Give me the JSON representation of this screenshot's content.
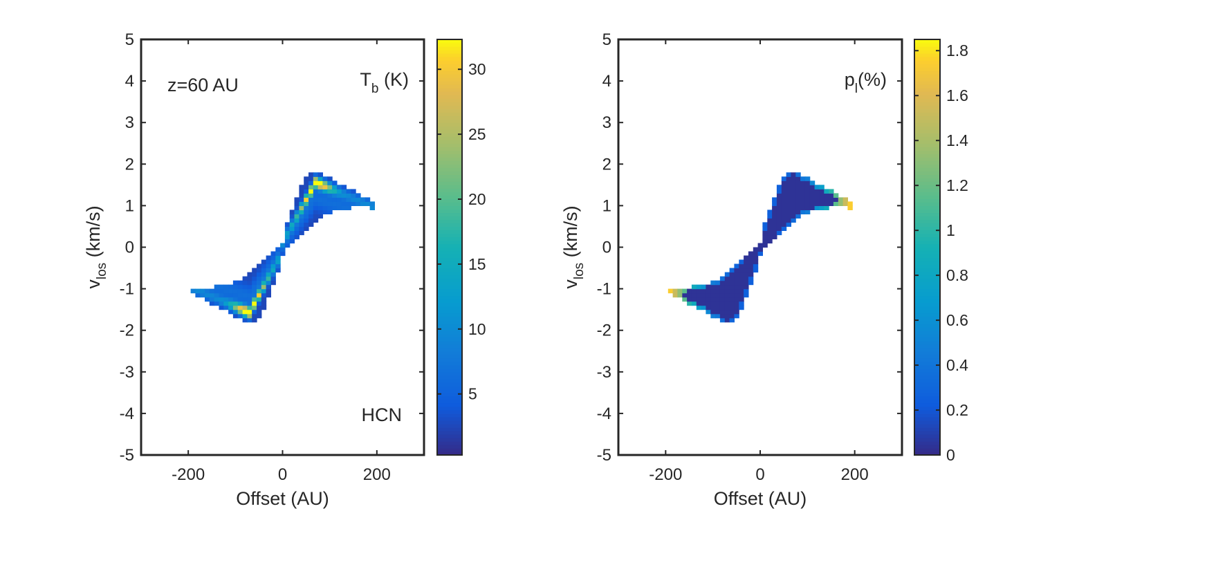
{
  "chart_data": [
    {
      "type": "heatmap",
      "title": "",
      "xlabel": "Offset (AU)",
      "ylabel_main": "v",
      "ylabel_sub": "los",
      "ylabel_unit": " (km/s)",
      "xlim": [
        -300,
        300
      ],
      "ylim": [
        -5,
        5
      ],
      "xticks": [
        -200,
        0,
        200
      ],
      "xtick_labels": [
        "-200",
        "0",
        "200"
      ],
      "yticks": [
        5,
        4,
        3,
        2,
        1,
        0,
        -1,
        -2,
        -3,
        -4,
        -5
      ],
      "ytick_labels": [
        "5",
        "4",
        "3",
        "2",
        "1",
        "0",
        "-1",
        "-2",
        "-3",
        "-4",
        "-5"
      ],
      "annotations": {
        "top_left": "z=60 AU",
        "top_right_main": "T",
        "top_right_sub": "b",
        "top_right_unit": " (K)",
        "bottom_right": "HCN"
      },
      "quantity": "Tb",
      "colorbar": {
        "min": 0.3,
        "max": 32.3,
        "ticks": [
          5,
          10,
          15,
          20,
          25,
          30
        ],
        "tick_labels": [
          "5",
          "10",
          "15",
          "20",
          "25",
          "30"
        ]
      },
      "extent": {
        "offset_range_AU": [
          -190,
          190
        ],
        "velocity_range_kms": [
          -1.85,
          1.85
        ],
        "peak_value": 32,
        "peak_locations": [
          [
            70,
            1.5
          ],
          [
            -70,
            -1.5
          ]
        ]
      }
    },
    {
      "type": "heatmap",
      "title": "",
      "xlabel": "Offset (AU)",
      "ylabel_main": "v",
      "ylabel_sub": "los",
      "ylabel_unit": " (km/s)",
      "xlim": [
        -300,
        300
      ],
      "ylim": [
        -5,
        5
      ],
      "xticks": [
        -200,
        0,
        200
      ],
      "xtick_labels": [
        "-200",
        "0",
        "200"
      ],
      "yticks": [
        5,
        4,
        3,
        2,
        1,
        0,
        -1,
        -2,
        -3,
        -4,
        -5
      ],
      "ytick_labels": [
        "5",
        "4",
        "3",
        "2",
        "1",
        "0",
        "-1",
        "-2",
        "-3",
        "-4",
        "-5"
      ],
      "annotations": {
        "top_left": "",
        "top_right_main": "p",
        "top_right_sub": "l",
        "top_right_unit": "(%)",
        "bottom_right": ""
      },
      "quantity": "pl",
      "colorbar": {
        "min": 0,
        "max": 1.85,
        "ticks": [
          0,
          0.2,
          0.4,
          0.6,
          0.8,
          1,
          1.2,
          1.4,
          1.6,
          1.8
        ],
        "tick_labels": [
          "0",
          "0.2",
          "0.4",
          "0.6",
          "0.8",
          "1",
          "1.2",
          "1.4",
          "1.6",
          "1.8"
        ]
      },
      "extent": {
        "offset_range_AU": [
          -190,
          190
        ],
        "velocity_range_kms": [
          -1.85,
          1.85
        ],
        "interior_value": 0.05,
        "edge_value_max": 1.8
      }
    }
  ]
}
